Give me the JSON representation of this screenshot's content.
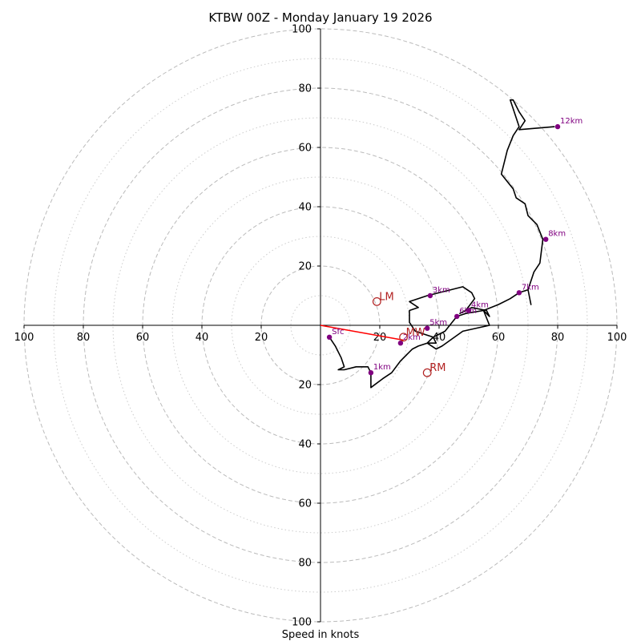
{
  "chart_data": {
    "type": "scatter",
    "subtype": "hodograph",
    "title": "KTBW 00Z - Monday January 19 2026",
    "xlabel": "Speed in knots",
    "units": "knots",
    "xlim": [
      -100,
      100
    ],
    "ylim": [
      -100,
      100
    ],
    "ring_major": [
      20,
      40,
      60,
      80,
      100
    ],
    "ring_minor": [
      10,
      30,
      50,
      70,
      90
    ],
    "x_tick_values": [
      -100,
      -80,
      -60,
      -40,
      -20,
      20,
      40,
      60,
      80,
      100
    ],
    "x_tick_labels": [
      "100",
      "80",
      "60",
      "40",
      "20",
      "20",
      "40",
      "60",
      "80",
      "100"
    ],
    "y_tick_values": [
      100,
      80,
      60,
      40,
      20,
      -20,
      -40,
      -60,
      -80,
      -100
    ],
    "y_tick_labels": [
      "100",
      "80",
      "60",
      "40",
      "20",
      "20",
      "40",
      "60",
      "80",
      "100"
    ],
    "colors": {
      "trace": "#000000",
      "height_marker": "#800080",
      "motion": "#b22222",
      "shear_vector": "#ff0000",
      "grid": "#bbbbbb",
      "axis": "#000000"
    },
    "trace": [
      [
        3,
        -4
      ],
      [
        5,
        -7
      ],
      [
        7,
        -11
      ],
      [
        8,
        -14
      ],
      [
        6,
        -15
      ],
      [
        8,
        -15
      ],
      [
        12,
        -14
      ],
      [
        16,
        -14
      ],
      [
        17,
        -16
      ],
      [
        17,
        -21
      ],
      [
        21,
        -18
      ],
      [
        24,
        -16
      ],
      [
        27,
        -12
      ],
      [
        29,
        -10
      ],
      [
        31,
        -8
      ],
      [
        33,
        -7
      ],
      [
        36,
        -6
      ],
      [
        39,
        -6
      ],
      [
        38,
        -4
      ],
      [
        35,
        -3
      ],
      [
        32,
        -2
      ],
      [
        30,
        1
      ],
      [
        30,
        5
      ],
      [
        33,
        6
      ],
      [
        30,
        8
      ],
      [
        36,
        10
      ],
      [
        44,
        12
      ],
      [
        48,
        13
      ],
      [
        51,
        11
      ],
      [
        52,
        9
      ],
      [
        49,
        5
      ],
      [
        47,
        4
      ],
      [
        51,
        6
      ],
      [
        56,
        5
      ],
      [
        57,
        3
      ],
      [
        55,
        5
      ],
      [
        57,
        0
      ],
      [
        48,
        -2
      ],
      [
        41,
        -7
      ],
      [
        39,
        -8
      ],
      [
        36,
        -6
      ],
      [
        38,
        -4
      ],
      [
        42,
        -2
      ],
      [
        46,
        3
      ],
      [
        49,
        4
      ],
      [
        55,
        5
      ],
      [
        60,
        7
      ],
      [
        64,
        9
      ],
      [
        67,
        11
      ],
      [
        70,
        12
      ],
      [
        71,
        7
      ],
      [
        70,
        12
      ],
      [
        72,
        18
      ],
      [
        74,
        21
      ],
      [
        75,
        29
      ],
      [
        73,
        34
      ],
      [
        70,
        37
      ],
      [
        69,
        41
      ],
      [
        66,
        43
      ],
      [
        65,
        46
      ],
      [
        61,
        51
      ],
      [
        63,
        59
      ],
      [
        65,
        64
      ],
      [
        67,
        67
      ],
      [
        66,
        70
      ],
      [
        65,
        73
      ],
      [
        64,
        76
      ],
      [
        65,
        76
      ],
      [
        67,
        72
      ],
      [
        69,
        69
      ],
      [
        67,
        66
      ],
      [
        79,
        67
      ]
    ],
    "height_markers": [
      {
        "label": "Sfc",
        "u": 3,
        "v": -4
      },
      {
        "label": "1km",
        "u": 17,
        "v": -16
      },
      {
        "label": "2km",
        "u": 27,
        "v": -6
      },
      {
        "label": "3km",
        "u": 37,
        "v": 10
      },
      {
        "label": "4km",
        "u": 50,
        "v": 5
      },
      {
        "label": "5km",
        "u": 36,
        "v": -1
      },
      {
        "label": "6km",
        "u": 46,
        "v": 3
      },
      {
        "label": "7km",
        "u": 67,
        "v": 11
      },
      {
        "label": "8km",
        "u": 76,
        "v": 29
      },
      {
        "label": "12km",
        "u": 80,
        "v": 67
      }
    ],
    "storm_motion": [
      {
        "label": "LM",
        "u": 19,
        "v": 8
      },
      {
        "label": "MW",
        "u": 28,
        "v": -4
      },
      {
        "label": "RM",
        "u": 36,
        "v": -16
      }
    ],
    "shear_vector": {
      "from": [
        0,
        0
      ],
      "to": [
        28,
        -5
      ]
    }
  }
}
